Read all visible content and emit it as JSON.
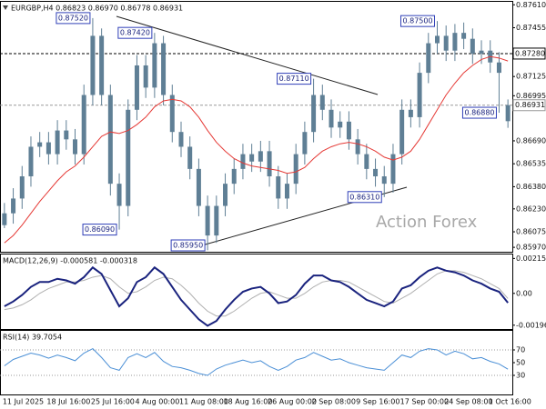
{
  "chart_data": [
    {
      "type": "candlestick",
      "header": "EURGBP,H4 0.86823 0.86970 0.86778 0.86931",
      "watermark": "Action Forex",
      "color": "#5f7f95",
      "ylim": [
        0.8594,
        0.8763
      ],
      "yticks": [
        {
          "value": 0.8761,
          "label": "0.87610"
        },
        0.87455,
        0.87125,
        0.86995,
        {
          "value": 0.8669,
          "label": "0.86690"
        },
        0.86535,
        {
          "value": 0.8638,
          "label": "0.86380"
        },
        {
          "value": 0.8623,
          "label": "0.86230"
        },
        0.86075,
        {
          "value": 0.8597,
          "label": "0.85970"
        }
      ],
      "levels": [
        {
          "value": 0.8728,
          "label": "0.87280",
          "color": "#000000"
        },
        {
          "value": 0.86931,
          "label": "0.86931",
          "color": "#9a9a9a"
        }
      ],
      "annotations": [
        {
          "value": 0.8752,
          "label": "0.87520",
          "kind": "high"
        },
        {
          "value": 0.8742,
          "label": "0.87420",
          "kind": "high"
        },
        {
          "value": 0.8711,
          "label": "0.87110",
          "kind": "high"
        },
        {
          "value": 0.875,
          "label": "0.87500",
          "kind": "high"
        },
        {
          "value": 0.8609,
          "label": "0.86090",
          "kind": "low"
        },
        {
          "value": 0.8595,
          "label": "0.85950",
          "kind": "low"
        },
        {
          "value": 0.8631,
          "label": "0.86310",
          "kind": "low"
        },
        {
          "value": 0.8688,
          "label": "0.86880",
          "kind": "low"
        }
      ],
      "open": [
        0.8612,
        0.862,
        0.863,
        0.8645,
        0.8665,
        0.8668,
        0.866,
        0.8676,
        0.867,
        0.866,
        0.87,
        0.874,
        0.87,
        0.864,
        0.8625,
        0.869,
        0.872,
        0.8705,
        0.8735,
        0.87,
        0.8675,
        0.8665,
        0.865,
        0.8625,
        0.8605,
        0.8625,
        0.864,
        0.865,
        0.866,
        0.8655,
        0.8662,
        0.8645,
        0.863,
        0.864,
        0.866,
        0.8675,
        0.87,
        0.869,
        0.8678,
        0.8682,
        0.867,
        0.866,
        0.865,
        0.8645,
        0.864,
        0.866,
        0.869,
        0.8685,
        0.8715,
        0.8735,
        0.874,
        0.873,
        0.8742,
        0.8738,
        0.8728,
        0.873,
        0.8722,
        0.86823
      ],
      "high": [
        0.8627,
        0.8637,
        0.8652,
        0.8672,
        0.8675,
        0.8675,
        0.8683,
        0.8683,
        0.8677,
        0.8707,
        0.8752,
        0.8745,
        0.8707,
        0.8647,
        0.8697,
        0.8727,
        0.8727,
        0.8742,
        0.874,
        0.8707,
        0.8682,
        0.8672,
        0.8657,
        0.8632,
        0.8632,
        0.8647,
        0.8657,
        0.8667,
        0.8667,
        0.8669,
        0.8669,
        0.8652,
        0.8647,
        0.8667,
        0.8682,
        0.8711,
        0.8707,
        0.8697,
        0.8689,
        0.8689,
        0.8677,
        0.8667,
        0.8657,
        0.8652,
        0.8667,
        0.8697,
        0.8697,
        0.8722,
        0.8742,
        0.875,
        0.8747,
        0.8748,
        0.8749,
        0.8745,
        0.8737,
        0.8737,
        0.8729,
        0.8697
      ],
      "low": [
        0.861,
        0.8613,
        0.8623,
        0.8638,
        0.8658,
        0.8653,
        0.8653,
        0.8663,
        0.8653,
        0.8653,
        0.8693,
        0.8693,
        0.8632,
        0.8609,
        0.8618,
        0.8683,
        0.8698,
        0.8698,
        0.8693,
        0.8668,
        0.8658,
        0.8643,
        0.8618,
        0.8595,
        0.86,
        0.8618,
        0.8633,
        0.8643,
        0.8648,
        0.8648,
        0.8638,
        0.8623,
        0.8623,
        0.8633,
        0.8653,
        0.8668,
        0.8683,
        0.8671,
        0.8671,
        0.8663,
        0.8653,
        0.8643,
        0.8638,
        0.8631,
        0.8634,
        0.8653,
        0.8678,
        0.8678,
        0.8708,
        0.8728,
        0.8723,
        0.8723,
        0.8731,
        0.8721,
        0.8721,
        0.8715,
        0.8688,
        0.86778
      ],
      "close": [
        0.862,
        0.863,
        0.8645,
        0.8665,
        0.8668,
        0.866,
        0.8676,
        0.867,
        0.866,
        0.87,
        0.874,
        0.87,
        0.864,
        0.8625,
        0.869,
        0.872,
        0.8705,
        0.8735,
        0.87,
        0.8675,
        0.8665,
        0.865,
        0.8625,
        0.8605,
        0.8625,
        0.864,
        0.865,
        0.866,
        0.8655,
        0.8662,
        0.8645,
        0.863,
        0.864,
        0.866,
        0.8675,
        0.87,
        0.869,
        0.8678,
        0.8682,
        0.867,
        0.866,
        0.865,
        0.8645,
        0.864,
        0.866,
        0.869,
        0.8685,
        0.8715,
        0.8735,
        0.874,
        0.873,
        0.8742,
        0.8738,
        0.8728,
        0.873,
        0.8722,
        0.8715,
        0.86931
      ],
      "moving_average": {
        "color": "#e53935",
        "values": [
          0.86,
          0.8605,
          0.8612,
          0.862,
          0.8628,
          0.8635,
          0.8642,
          0.8648,
          0.8652,
          0.8658,
          0.8665,
          0.8672,
          0.8675,
          0.8674,
          0.8676,
          0.868,
          0.8685,
          0.8692,
          0.8696,
          0.8697,
          0.8696,
          0.8692,
          0.8685,
          0.8676,
          0.8668,
          0.8662,
          0.8657,
          0.8654,
          0.8652,
          0.8651,
          0.865,
          0.8649,
          0.8647,
          0.8648,
          0.8651,
          0.8657,
          0.8662,
          0.8665,
          0.8667,
          0.8668,
          0.8667,
          0.8665,
          0.8662,
          0.8658,
          0.8656,
          0.8658,
          0.8662,
          0.867,
          0.868,
          0.869,
          0.87,
          0.8708,
          0.8715,
          0.872,
          0.8724,
          0.8726,
          0.8725,
          0.8723
        ]
      }
    },
    {
      "type": "line",
      "title": "MACD(12,26,9) -0.000581 -0.000318",
      "ylim": [
        -0.0022,
        0.0024
      ],
      "yticks": [
        0.002155,
        {
          "value": 0,
          "label": "0.00"
        },
        -0.001965
      ],
      "series": [
        {
          "color": "#b0b0b0",
          "width": 1,
          "values": [
            -0.001,
            -0.0009,
            -0.0007,
            -0.0004,
            0.0,
            0.0003,
            0.0005,
            0.0007,
            0.0007,
            0.0008,
            0.001,
            0.0011,
            0.0009,
            0.0004,
            0.0,
            0.0001,
            0.0004,
            0.0008,
            0.001,
            0.0009,
            0.0005,
            0.0,
            -0.0006,
            -0.0011,
            -0.0014,
            -0.0014,
            -0.0011,
            -0.0007,
            -0.0003,
            0.0,
            0.0001,
            -0.0001,
            -0.0003,
            -0.0003,
            0.0,
            0.0004,
            0.0007,
            0.0008,
            0.0008,
            0.0007,
            0.0004,
            0.0001,
            -0.0002,
            -0.0005,
            -0.0006,
            -0.0003,
            0.0,
            0.0004,
            0.0008,
            0.0012,
            0.0014,
            0.0014,
            0.0013,
            0.0011,
            0.0009,
            0.0006,
            0.0003,
            -0.000318
          ]
        },
        {
          "color": "#1a237e",
          "width": 2,
          "values": [
            -0.0008,
            -0.0005,
            -0.0001,
            0.0004,
            0.0007,
            0.0007,
            0.0009,
            0.0008,
            0.0006,
            0.001,
            0.0016,
            0.0012,
            0.0002,
            -0.0008,
            -0.0003,
            0.0007,
            0.001,
            0.0016,
            0.0012,
            0.0004,
            -0.0004,
            -0.001,
            -0.0016,
            -0.002,
            -0.0017,
            -0.001,
            -0.0004,
            0.0001,
            0.0003,
            0.0004,
            0.0,
            -0.0006,
            -0.0005,
            -0.0001,
            0.0006,
            0.0011,
            0.0011,
            0.0008,
            0.0007,
            0.0004,
            0.0,
            -0.0004,
            -0.0006,
            -0.0008,
            -0.0005,
            0.0003,
            0.0005,
            0.001,
            0.0014,
            0.0016,
            0.0014,
            0.0013,
            0.0011,
            0.0008,
            0.0006,
            0.0003,
            0.0001,
            -0.000581
          ]
        }
      ]
    },
    {
      "type": "line",
      "title": "RSI(14) 39.7054",
      "ylim": [
        0,
        100
      ],
      "yticks": [
        70,
        50,
        30
      ],
      "levels": [
        70,
        30
      ],
      "categories": [
        "11 Jul 2025",
        null,
        null,
        null,
        null,
        "18 Jul 16:00",
        null,
        null,
        null,
        null,
        "25 Jul 16:00",
        null,
        null,
        null,
        null,
        "4 Aug 00:00",
        null,
        null,
        null,
        null,
        "11 Aug 08:00",
        null,
        null,
        null,
        null,
        "18 Aug 16:00",
        null,
        null,
        null,
        null,
        "26 Aug 00:00",
        null,
        null,
        null,
        null,
        "2 Sep 08:00",
        null,
        null,
        null,
        null,
        "9 Sep 16:00",
        null,
        null,
        null,
        null,
        "17 Sep 00:00",
        null,
        null,
        null,
        null,
        "24 Sep 08:00",
        null,
        null,
        null,
        null,
        "1 Oct 16:00",
        null,
        null
      ],
      "series": [
        {
          "color": "#4a8fd6",
          "width": 1,
          "values": [
            45,
            55,
            60,
            65,
            62,
            57,
            62,
            58,
            53,
            65,
            72,
            58,
            42,
            38,
            58,
            64,
            58,
            66,
            52,
            44,
            42,
            38,
            33,
            30,
            40,
            46,
            50,
            54,
            50,
            53,
            44,
            38,
            44,
            54,
            58,
            66,
            60,
            54,
            56,
            50,
            46,
            42,
            40,
            38,
            50,
            62,
            58,
            68,
            72,
            70,
            62,
            68,
            64,
            56,
            58,
            52,
            48,
            39.7054
          ]
        }
      ]
    }
  ]
}
